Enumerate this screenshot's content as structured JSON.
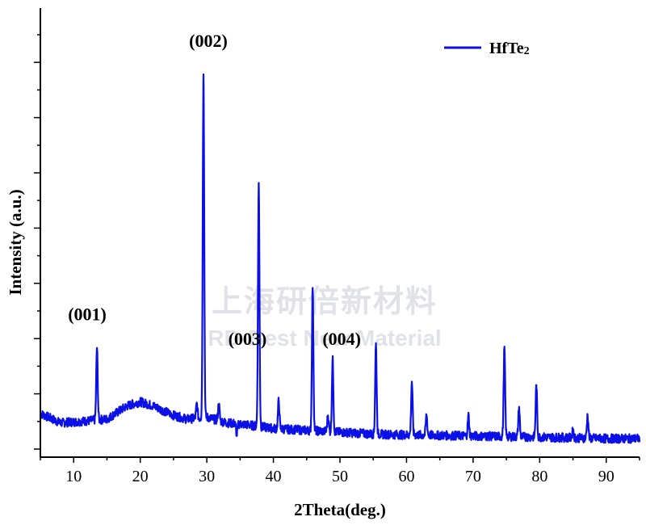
{
  "chart_data": {
    "type": "line",
    "xlabel": "2Theta(deg.)",
    "ylabel": "Intensity (a.u.)",
    "xlim": [
      5,
      95
    ],
    "ylim": [
      0,
      100
    ],
    "x_ticks": [
      "10",
      "20",
      "30",
      "40",
      "50",
      "60",
      "70",
      "80",
      "90"
    ],
    "y_tick_labels": "none",
    "series": [
      {
        "name": "HfTe2",
        "color": "#0b10e6",
        "baseline": [
          [
            5,
            9.5
          ],
          [
            8,
            7
          ],
          [
            12,
            7.5
          ],
          [
            15,
            8
          ],
          [
            18,
            11.5
          ],
          [
            20,
            12.6
          ],
          [
            22,
            11.5
          ],
          [
            25,
            9
          ],
          [
            27,
            8
          ],
          [
            30,
            8.5
          ],
          [
            33,
            7
          ],
          [
            36,
            6.5
          ],
          [
            40,
            5.5
          ],
          [
            45,
            5
          ],
          [
            50,
            4.5
          ],
          [
            55,
            4
          ],
          [
            60,
            3.8
          ],
          [
            70,
            3.5
          ],
          [
            80,
            3.2
          ],
          [
            90,
            2.8
          ],
          [
            95,
            2.8
          ]
        ],
        "peaks": [
          [
            13.5,
            27
          ],
          [
            28.5,
            12
          ],
          [
            29.5,
            100
          ],
          [
            31.8,
            12
          ],
          [
            34.5,
            4
          ],
          [
            37.8,
            71
          ],
          [
            40.8,
            13
          ],
          [
            45.9,
            43
          ],
          [
            48.2,
            9
          ],
          [
            48.9,
            24
          ],
          [
            55.4,
            28
          ],
          [
            60.8,
            18
          ],
          [
            63.0,
            9
          ],
          [
            69.3,
            9
          ],
          [
            74.7,
            27
          ],
          [
            76.9,
            11
          ],
          [
            79.5,
            17
          ],
          [
            85.0,
            5
          ],
          [
            87.2,
            9
          ]
        ]
      }
    ],
    "annotations": [
      {
        "text": "(001)",
        "x": 13.5
      },
      {
        "text": "(002)",
        "x": 29.5
      },
      {
        "text": "(003)",
        "x": 37.8
      },
      {
        "text": "(004)",
        "x": 45.9
      }
    ],
    "legend": {
      "label": "HfTe",
      "subscript": "2",
      "position": "top-right"
    },
    "grid": false
  },
  "watermark": {
    "line1": "上海研倍新材料",
    "line2": "RD-Best New Material"
  }
}
